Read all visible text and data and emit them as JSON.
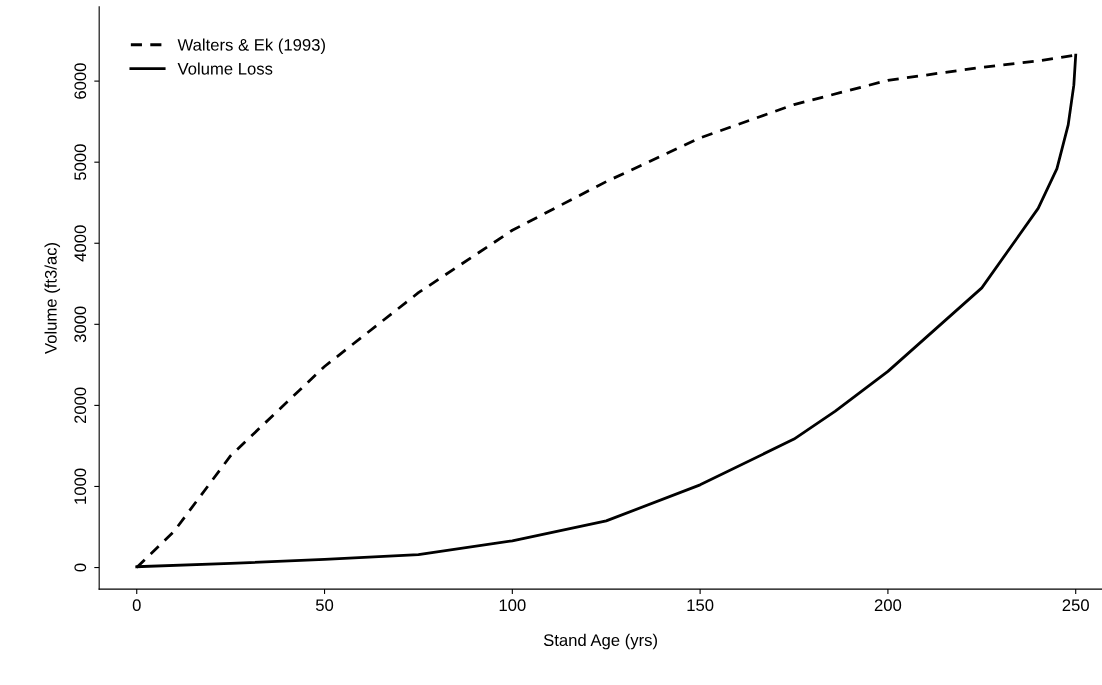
{
  "chart_data": {
    "type": "line",
    "xlabel": "Stand Age (yrs)",
    "ylabel": "Volume (ft3/ac)",
    "xlim": [
      -10,
      257
    ],
    "ylim": [
      -266,
      6916
    ],
    "xticks": [
      0,
      50,
      100,
      150,
      200,
      250
    ],
    "yticks": [
      0,
      1000,
      2000,
      3000,
      4000,
      5000,
      6000
    ],
    "grid": false,
    "legend": "top left",
    "series": [
      {
        "name": "Walters & Ek (1993)",
        "color": "#000000",
        "line_style": "dashed",
        "x": [
          0,
          10,
          25,
          50,
          75,
          100,
          125,
          150,
          175,
          200,
          225,
          240,
          250
        ],
        "values": [
          0,
          450,
          1380,
          2480,
          3390,
          4160,
          4760,
          5300,
          5710,
          6010,
          6170,
          6250,
          6320
        ]
      },
      {
        "name": "Volume Loss",
        "color": "#000000",
        "line_style": "solid",
        "x": [
          0,
          25,
          50,
          75,
          100,
          125,
          150,
          175,
          186,
          200,
          225,
          240,
          245,
          248,
          249.5,
          250
        ],
        "values": [
          10,
          50,
          100,
          160,
          330,
          575,
          1020,
          1585,
          1930,
          2420,
          3450,
          4430,
          4920,
          5460,
          5950,
          6320
        ]
      }
    ]
  }
}
